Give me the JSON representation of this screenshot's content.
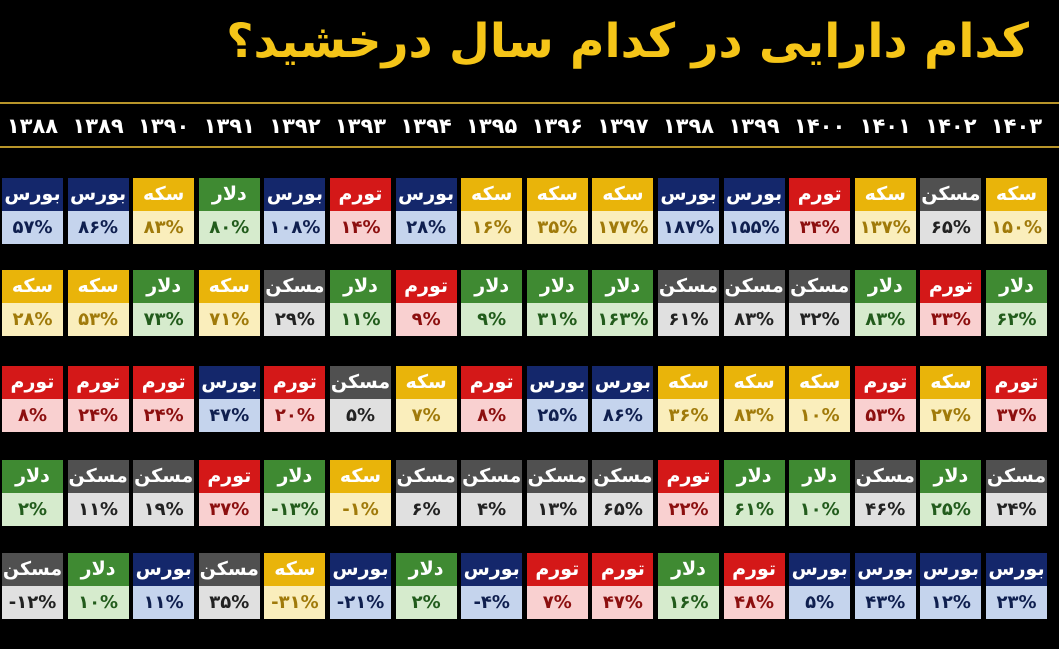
{
  "title": "کدام دارایی در کدام سال درخشید؟",
  "colors": {
    "background": "#000000",
    "title": "#f5c518",
    "rule": "#b8952a",
    "بورس": {
      "header": "#14276b",
      "body": "#c5d4ed",
      "text": "#0f1f4f"
    },
    "سکه": {
      "header": "#e9b40a",
      "body": "#faeebc",
      "text": "#a07a0a"
    },
    "دلار": {
      "header": "#3f8a32",
      "body": "#d6ebcd",
      "text": "#225c1c"
    },
    "تورم": {
      "header": "#d41818",
      "body": "#f9d0d0",
      "text": "#8c0f0f"
    },
    "مسکن": {
      "header": "#505050",
      "body": "#e0e0e0",
      "text": "#222222"
    }
  },
  "chart_data": {
    "type": "table",
    "title": "کدام دارایی در کدام سال درخشید؟",
    "years": [
      "۱۳۸۸",
      "۱۳۸۹",
      "۱۳۹۰",
      "۱۳۹۱",
      "۱۳۹۲",
      "۱۳۹۳",
      "۱۳۹۴",
      "۱۳۹۵",
      "۱۳۹۶",
      "۱۳۹۷",
      "۱۳۹۸",
      "۱۳۹۹",
      "۱۴۰۰",
      "۱۴۰۱",
      "۱۴۰۲",
      "۱۴۰۳"
    ],
    "rows": [
      [
        {
          "asset": "بورس",
          "value": "۵۷%"
        },
        {
          "asset": "بورس",
          "value": "۸۶%"
        },
        {
          "asset": "سکه",
          "value": "۸۳%"
        },
        {
          "asset": "دلار",
          "value": "۸۰%"
        },
        {
          "asset": "بورس",
          "value": "۱۰۸%"
        },
        {
          "asset": "تورم",
          "value": "۱۴%"
        },
        {
          "asset": "بورس",
          "value": "۲۸%"
        },
        {
          "asset": "سکه",
          "value": "۱۶%"
        },
        {
          "asset": "سکه",
          "value": "۳۵%"
        },
        {
          "asset": "سکه",
          "value": "۱۷۷%"
        },
        {
          "asset": "بورس",
          "value": "۱۸۷%"
        },
        {
          "asset": "بورس",
          "value": "۱۵۵%"
        },
        {
          "asset": "تورم",
          "value": "۳۴%"
        },
        {
          "asset": "سکه",
          "value": "۱۳۷%"
        },
        {
          "asset": "مسکن",
          "value": "۶۵%"
        },
        {
          "asset": "سکه",
          "value": "۱۵۰%"
        }
      ],
      [
        {
          "asset": "سکه",
          "value": "۲۸%"
        },
        {
          "asset": "سکه",
          "value": "۵۳%"
        },
        {
          "asset": "دلار",
          "value": "۷۳%"
        },
        {
          "asset": "سکه",
          "value": "۷۱%"
        },
        {
          "asset": "مسکن",
          "value": "۲۹%"
        },
        {
          "asset": "دلار",
          "value": "۱۱%"
        },
        {
          "asset": "تورم",
          "value": "۹%"
        },
        {
          "asset": "دلار",
          "value": "۹%"
        },
        {
          "asset": "دلار",
          "value": "۳۱%"
        },
        {
          "asset": "دلار",
          "value": "۱۶۳%"
        },
        {
          "asset": "مسکن",
          "value": "۶۱%"
        },
        {
          "asset": "مسکن",
          "value": "۸۳%"
        },
        {
          "asset": "مسکن",
          "value": "۳۲%"
        },
        {
          "asset": "دلار",
          "value": "۸۳%"
        },
        {
          "asset": "تورم",
          "value": "۳۳%"
        },
        {
          "asset": "دلار",
          "value": "۶۲%"
        }
      ],
      [
        {
          "asset": "تورم",
          "value": "۸%"
        },
        {
          "asset": "تورم",
          "value": "۲۴%"
        },
        {
          "asset": "تورم",
          "value": "۲۴%"
        },
        {
          "asset": "بورس",
          "value": "۴۷%"
        },
        {
          "asset": "تورم",
          "value": "۲۰%"
        },
        {
          "asset": "مسکن",
          "value": "۵%"
        },
        {
          "asset": "سکه",
          "value": "۷%"
        },
        {
          "asset": "تورم",
          "value": "۸%"
        },
        {
          "asset": "بورس",
          "value": "۲۵%"
        },
        {
          "asset": "بورس",
          "value": "۸۶%"
        },
        {
          "asset": "سکه",
          "value": "۳۶%"
        },
        {
          "asset": "سکه",
          "value": "۸۳%"
        },
        {
          "asset": "سکه",
          "value": "۱۰%"
        },
        {
          "asset": "تورم",
          "value": "۵۳%"
        },
        {
          "asset": "سکه",
          "value": "۲۷%"
        },
        {
          "asset": "تورم",
          "value": "۳۷%"
        }
      ],
      [
        {
          "asset": "دلار",
          "value": "۲%"
        },
        {
          "asset": "مسکن",
          "value": "۱۱%"
        },
        {
          "asset": "مسکن",
          "value": "۱۹%"
        },
        {
          "asset": "تورم",
          "value": "۳۷%"
        },
        {
          "asset": "دلار",
          "value": "-۱۳%"
        },
        {
          "asset": "سکه",
          "value": "-۱%"
        },
        {
          "asset": "مسکن",
          "value": "۶%"
        },
        {
          "asset": "مسکن",
          "value": "۴%"
        },
        {
          "asset": "مسکن",
          "value": "۱۳%"
        },
        {
          "asset": "مسکن",
          "value": "۶۵%"
        },
        {
          "asset": "تورم",
          "value": "۲۲%"
        },
        {
          "asset": "دلار",
          "value": "۶۱%"
        },
        {
          "asset": "دلار",
          "value": "۱۰%"
        },
        {
          "asset": "مسکن",
          "value": "۴۶%"
        },
        {
          "asset": "دلار",
          "value": "۲۵%"
        },
        {
          "asset": "مسکن",
          "value": "۲۴%"
        }
      ],
      [
        {
          "asset": "مسکن",
          "value": "-۱۲%"
        },
        {
          "asset": "دلار",
          "value": "۱۰%"
        },
        {
          "asset": "بورس",
          "value": "۱۱%"
        },
        {
          "asset": "مسکن",
          "value": "۳۵%"
        },
        {
          "asset": "سکه",
          "value": "-۳۱%"
        },
        {
          "asset": "بورس",
          "value": "-۲۱%"
        },
        {
          "asset": "دلار",
          "value": "۲%"
        },
        {
          "asset": "بورس",
          "value": "-۴%"
        },
        {
          "asset": "تورم",
          "value": "۷%"
        },
        {
          "asset": "تورم",
          "value": "۴۷%"
        },
        {
          "asset": "دلار",
          "value": "۱۶%"
        },
        {
          "asset": "تورم",
          "value": "۴۸%"
        },
        {
          "asset": "بورس",
          "value": "۵%"
        },
        {
          "asset": "بورس",
          "value": "۴۳%"
        },
        {
          "asset": "بورس",
          "value": "۱۲%"
        },
        {
          "asset": "بورس",
          "value": "۲۳%"
        }
      ]
    ]
  }
}
